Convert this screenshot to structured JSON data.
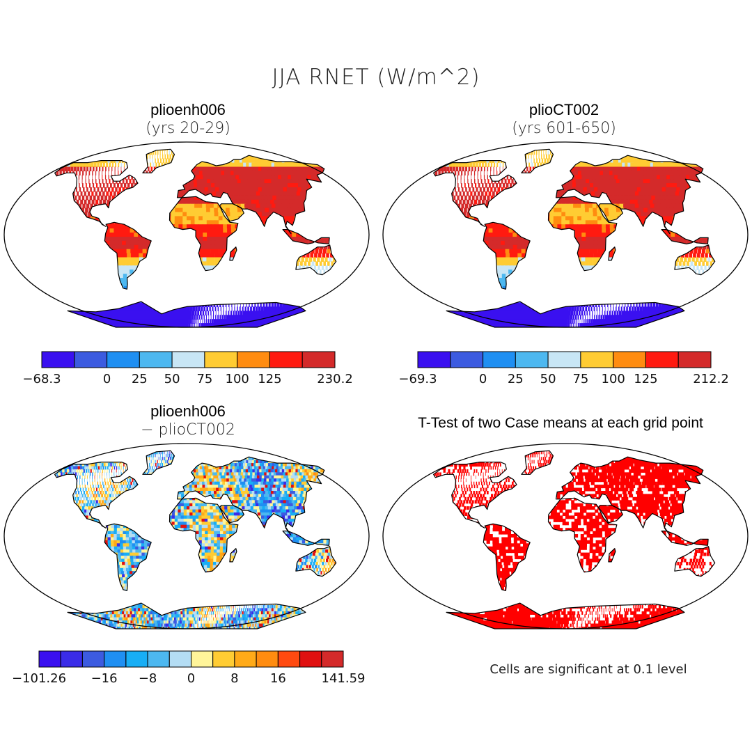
{
  "title": "JJA RNET (W/m^2)",
  "panels": [
    {
      "id": "top-left",
      "name": "plioenh006",
      "subtitle": "(yrs 20-29)"
    },
    {
      "id": "top-right",
      "name": "plioCT002",
      "subtitle": "(yrs 601-650)"
    },
    {
      "id": "bottom-left",
      "name": "plioenh006",
      "subtitle": "− plioCT002"
    },
    {
      "id": "bottom-right",
      "name": "T-Test of two Case means at each grid point",
      "subtitle": ""
    }
  ],
  "colorbars": [
    {
      "id": "cb1",
      "colors": [
        "#3a10f0",
        "#3c5be0",
        "#1f8ff2",
        "#4db8f0",
        "#c8e6f5",
        "#ffcc33",
        "#ff8c10",
        "#ff1a10",
        "#d42a2a"
      ],
      "ticks": [
        "−68.3",
        "0",
        "25",
        "50",
        "75",
        "100",
        "125",
        "230.2"
      ],
      "tick_boundaries": [
        0,
        2,
        3,
        4,
        5,
        6,
        7,
        9
      ]
    },
    {
      "id": "cb2",
      "colors": [
        "#3a10f0",
        "#3c5be0",
        "#1f8ff2",
        "#4db8f0",
        "#c8e6f5",
        "#ffcc33",
        "#ff8c10",
        "#ff1a10",
        "#d42a2a"
      ],
      "ticks": [
        "−69.3",
        "0",
        "25",
        "50",
        "75",
        "100",
        "125",
        "212.2"
      ],
      "tick_boundaries": [
        0,
        2,
        3,
        4,
        5,
        6,
        7,
        9
      ]
    },
    {
      "id": "cb3",
      "colors": [
        "#3a10f0",
        "#3a2ce8",
        "#3c5be0",
        "#1f8ff2",
        "#18aef5",
        "#4db8f0",
        "#b4ddf4",
        "#fff59a",
        "#ffcc33",
        "#ffaa18",
        "#ff8c10",
        "#ff4a10",
        "#e01010",
        "#d42a2a"
      ],
      "ticks": [
        "−101.26",
        "−16",
        "−8",
        "0",
        "8",
        "16",
        "141.59"
      ],
      "tick_boundaries": [
        0,
        3,
        5,
        7,
        9,
        11,
        14
      ]
    }
  ],
  "note": "Cells are significant at 0.1 level",
  "colors": {
    "significant": "#ff0000",
    "ocean": "#ffffff",
    "coast": "#000000"
  }
}
